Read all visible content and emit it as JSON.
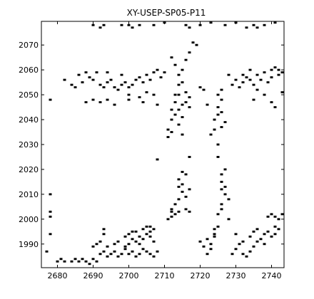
{
  "chart_data": {
    "type": "scatter",
    "title": "XY-USEP-SP05-P11",
    "xlabel": "",
    "ylabel": "",
    "xlim": [
      2675.5,
      2743.5
    ],
    "ylim": [
      1980.5,
      2079.5
    ],
    "xticks": [
      2680,
      2690,
      2700,
      2710,
      2720,
      2730,
      2740
    ],
    "yticks": [
      1990,
      2000,
      2010,
      2020,
      2030,
      2040,
      2050,
      2060,
      2070
    ],
    "grid": false,
    "legend": "none",
    "marker_color": "#000000",
    "points": [
      [
        2677,
        1987
      ],
      [
        2680,
        1983
      ],
      [
        2681,
        1984
      ],
      [
        2682,
        1983
      ],
      [
        2684,
        1983
      ],
      [
        2685,
        1984
      ],
      [
        2686,
        1983
      ],
      [
        2687,
        1984
      ],
      [
        2688,
        1983
      ],
      [
        2689,
        1982
      ],
      [
        2690,
        1984
      ],
      [
        2691,
        1983
      ],
      [
        2692,
        1986
      ],
      [
        2693,
        1987
      ],
      [
        2694,
        1985
      ],
      [
        2695,
        1986
      ],
      [
        2696,
        1987
      ],
      [
        2697,
        1985
      ],
      [
        2698,
        1986
      ],
      [
        2699,
        1988
      ],
      [
        2700,
        1986
      ],
      [
        2701,
        1987
      ],
      [
        2702,
        1985
      ],
      [
        2703,
        1986
      ],
      [
        2704,
        1988
      ],
      [
        2705,
        1987
      ],
      [
        2706,
        1986
      ],
      [
        2707,
        1985
      ],
      [
        2708,
        1987
      ],
      [
        2690,
        1989
      ],
      [
        2691,
        1990
      ],
      [
        2692,
        1991
      ],
      [
        2694,
        1989
      ],
      [
        2696,
        1990
      ],
      [
        2697,
        1991
      ],
      [
        2699,
        1989
      ],
      [
        2700,
        1990
      ],
      [
        2701,
        1992
      ],
      [
        2702,
        1991
      ],
      [
        2703,
        1993
      ],
      [
        2704,
        1992
      ],
      [
        2705,
        1994
      ],
      [
        2706,
        1995
      ],
      [
        2707,
        1996
      ],
      [
        2704,
        1996
      ],
      [
        2705,
        1997
      ],
      [
        2706,
        1997
      ],
      [
        2703,
        1990
      ],
      [
        2702,
        1995
      ],
      [
        2693,
        1994
      ],
      [
        2693,
        1996
      ],
      [
        2700,
        1994
      ],
      [
        2701,
        1995
      ],
      [
        2699,
        1993
      ],
      [
        2706,
        1993
      ],
      [
        2707,
        1991
      ],
      [
        2678,
        1994
      ],
      [
        2678,
        2001
      ],
      [
        2678,
        2003
      ],
      [
        2678,
        2010
      ],
      [
        2711,
        2000
      ],
      [
        2712,
        2001
      ],
      [
        2712,
        2004
      ],
      [
        2713,
        2002
      ],
      [
        2713,
        2006
      ],
      [
        2714,
        2008
      ],
      [
        2714,
        2013
      ],
      [
        2714,
        2016
      ],
      [
        2715,
        2011
      ],
      [
        2715,
        2014
      ],
      [
        2716,
        2009
      ],
      [
        2716,
        2018
      ],
      [
        2717,
        2003
      ],
      [
        2717,
        2012
      ],
      [
        2714,
        2003
      ],
      [
        2716,
        2004
      ],
      [
        2712,
        2003
      ],
      [
        2715,
        2019
      ],
      [
        2717,
        2025
      ],
      [
        2722,
        1986
      ],
      [
        2723,
        1988
      ],
      [
        2723,
        1990
      ],
      [
        2724,
        1993
      ],
      [
        2724,
        1996
      ],
      [
        2725,
        1997
      ],
      [
        2724,
        1994
      ],
      [
        2722,
        1992
      ],
      [
        2721,
        1989
      ],
      [
        2720,
        1991
      ],
      [
        2725,
        2002
      ],
      [
        2726,
        2004
      ],
      [
        2726,
        2006
      ],
      [
        2727,
        2010
      ],
      [
        2727,
        2013
      ],
      [
        2726,
        2015
      ],
      [
        2726,
        2018
      ],
      [
        2727,
        2020
      ],
      [
        2728,
        2008
      ],
      [
        2728,
        2000
      ],
      [
        2726,
        2012
      ],
      [
        2725,
        2025
      ],
      [
        2729,
        1986
      ],
      [
        2730,
        1988
      ],
      [
        2731,
        1990
      ],
      [
        2732,
        1986
      ],
      [
        2733,
        1985
      ],
      [
        2734,
        1987
      ],
      [
        2735,
        1989
      ],
      [
        2736,
        1991
      ],
      [
        2737,
        1992
      ],
      [
        2738,
        1994
      ],
      [
        2739,
        1995
      ],
      [
        2740,
        1993
      ],
      [
        2741,
        1994
      ],
      [
        2734,
        1993
      ],
      [
        2735,
        1995
      ],
      [
        2736,
        1996
      ],
      [
        2738,
        1990
      ],
      [
        2742,
        1996
      ],
      [
        2732,
        1991
      ],
      [
        2730,
        1994
      ],
      [
        2739,
        2001
      ],
      [
        2740,
        2002
      ],
      [
        2741,
        2001
      ],
      [
        2742,
        2000
      ],
      [
        2743,
        2002
      ],
      [
        2741,
        1997
      ],
      [
        2708,
        2024
      ],
      [
        2725,
        2030
      ],
      [
        2711,
        2033
      ],
      [
        2711,
        2036
      ],
      [
        2712,
        2035
      ],
      [
        2712,
        2040
      ],
      [
        2712,
        2044
      ],
      [
        2713,
        2042
      ],
      [
        2713,
        2047
      ],
      [
        2714,
        2038
      ],
      [
        2714,
        2044
      ],
      [
        2714,
        2050
      ],
      [
        2715,
        2046
      ],
      [
        2715,
        2041
      ],
      [
        2716,
        2051
      ],
      [
        2716,
        2047
      ],
      [
        2717,
        2049
      ],
      [
        2717,
        2045
      ],
      [
        2713,
        2050
      ],
      [
        2715,
        2034
      ],
      [
        2724,
        2036
      ],
      [
        2724,
        2040
      ],
      [
        2725,
        2042
      ],
      [
        2725,
        2045
      ],
      [
        2726,
        2048
      ],
      [
        2726,
        2043
      ],
      [
        2726,
        2037
      ],
      [
        2727,
        2039
      ],
      [
        2725,
        2050
      ],
      [
        2723,
        2034
      ],
      [
        2726,
        2052
      ],
      [
        2722,
        2046
      ],
      [
        2720,
        2053
      ],
      [
        2721,
        2052
      ],
      [
        2688,
        2047
      ],
      [
        2690,
        2048
      ],
      [
        2692,
        2047
      ],
      [
        2694,
        2048
      ],
      [
        2696,
        2046
      ],
      [
        2700,
        2048
      ],
      [
        2704,
        2047
      ],
      [
        2708,
        2046
      ],
      [
        2678,
        2048
      ],
      [
        2682,
        2056
      ],
      [
        2684,
        2054
      ],
      [
        2685,
        2053
      ],
      [
        2686,
        2058
      ],
      [
        2687,
        2055
      ],
      [
        2688,
        2059
      ],
      [
        2689,
        2057
      ],
      [
        2690,
        2056
      ],
      [
        2691,
        2059
      ],
      [
        2692,
        2054
      ],
      [
        2693,
        2053
      ],
      [
        2694,
        2055
      ],
      [
        2695,
        2056
      ],
      [
        2696,
        2053
      ],
      [
        2697,
        2052
      ],
      [
        2698,
        2054
      ],
      [
        2699,
        2055
      ],
      [
        2700,
        2053
      ],
      [
        2701,
        2054
      ],
      [
        2702,
        2056
      ],
      [
        2703,
        2057
      ],
      [
        2704,
        2055
      ],
      [
        2705,
        2058
      ],
      [
        2706,
        2056
      ],
      [
        2707,
        2059
      ],
      [
        2708,
        2060
      ],
      [
        2709,
        2057
      ],
      [
        2710,
        2059
      ],
      [
        2698,
        2058
      ],
      [
        2694,
        2059
      ],
      [
        2700,
        2050
      ],
      [
        2703,
        2049
      ],
      [
        2705,
        2051
      ],
      [
        2707,
        2050
      ],
      [
        2712,
        2065
      ],
      [
        2713,
        2062
      ],
      [
        2714,
        2058
      ],
      [
        2715,
        2060
      ],
      [
        2716,
        2064
      ],
      [
        2717,
        2067
      ],
      [
        2718,
        2071
      ],
      [
        2719,
        2070
      ],
      [
        2714,
        2054
      ],
      [
        2715,
        2055
      ],
      [
        2729,
        2054
      ],
      [
        2730,
        2056
      ],
      [
        2731,
        2053
      ],
      [
        2732,
        2055
      ],
      [
        2733,
        2057
      ],
      [
        2734,
        2056
      ],
      [
        2735,
        2054
      ],
      [
        2736,
        2058
      ],
      [
        2737,
        2056
      ],
      [
        2738,
        2059
      ],
      [
        2739,
        2055
      ],
      [
        2740,
        2060
      ],
      [
        2741,
        2061
      ],
      [
        2742,
        2060
      ],
      [
        2743,
        2059
      ],
      [
        2740,
        2057
      ],
      [
        2742,
        2058
      ],
      [
        2736,
        2052
      ],
      [
        2738,
        2050
      ],
      [
        2740,
        2047
      ],
      [
        2741,
        2045
      ],
      [
        2743,
        2051
      ],
      [
        2734,
        2060
      ],
      [
        2732,
        2058
      ],
      [
        2728,
        2058
      ],
      [
        2735,
        2048
      ],
      [
        2690,
        2078
      ],
      [
        2692,
        2077
      ],
      [
        2693,
        2078
      ],
      [
        2698,
        2078
      ],
      [
        2700,
        2078
      ],
      [
        2701,
        2077
      ],
      [
        2703,
        2078
      ],
      [
        2707,
        2078
      ],
      [
        2710,
        2079
      ],
      [
        2716,
        2078
      ],
      [
        2717,
        2077
      ],
      [
        2720,
        2078
      ],
      [
        2723,
        2079
      ],
      [
        2727,
        2078
      ],
      [
        2730,
        2079
      ],
      [
        2735,
        2078
      ],
      [
        2736,
        2077
      ],
      [
        2738,
        2078
      ],
      [
        2741,
        2079
      ],
      [
        2733,
        2077
      ]
    ]
  }
}
